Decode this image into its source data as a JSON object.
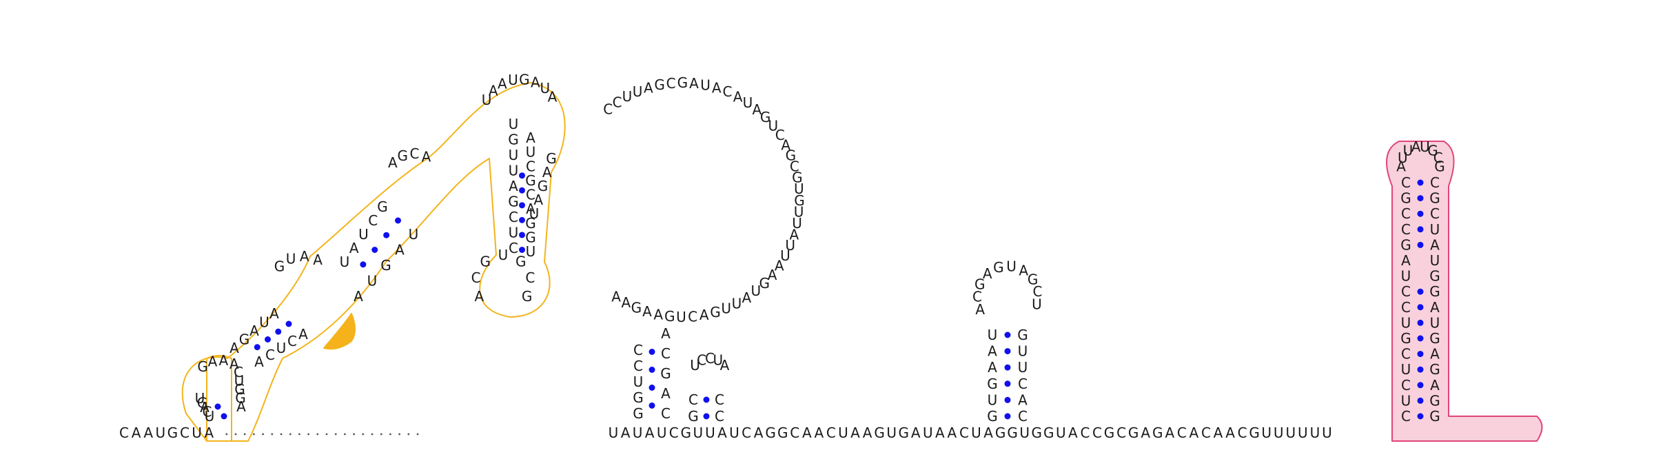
{
  "diagram": {
    "type": "rna-secondary-structure",
    "colors": {
      "background": "#ffffff",
      "nucleotide": "#1a1a1a",
      "base_pair": "#1010ee",
      "backbone": "#555555",
      "highlight_orange_stroke": "#f3b41b",
      "highlight_orange_fill": "#f5b21a",
      "highlight_pink_stroke": "#e0457b",
      "highlight_pink_fill": "#f8d1dd"
    },
    "strand": {
      "five_prime": [
        "C",
        "A",
        "A",
        "U",
        "G",
        "C",
        "U",
        "A"
      ],
      "gap_dots": 22,
      "after_gap": [
        "U",
        "A",
        "U",
        "A",
        "U",
        "C",
        "G",
        "U",
        "U",
        "A",
        "U",
        "C",
        "A",
        "G",
        "G",
        "C",
        "A",
        "A",
        "C",
        "U",
        "A",
        "A",
        "G",
        "U",
        "G",
        "A",
        "U",
        "A",
        "A",
        "C",
        "U",
        "A",
        "G",
        "G",
        "U",
        "G",
        "G",
        "U",
        "A",
        "C",
        "C",
        "G",
        "C",
        "G",
        "A",
        "G",
        "A",
        "C",
        "A",
        "C",
        "A",
        "A",
        "C",
        "G",
        "U",
        "U",
        "U",
        "U",
        "U",
        "U"
      ]
    },
    "left_domain": {
      "stem1_left": [
        "U",
        "G",
        "A",
        "C",
        "U"
      ],
      "stem1_right": [
        "A",
        "G",
        "G",
        "U",
        "C"
      ],
      "loop1": [
        "G",
        "A",
        "A",
        "A"
      ],
      "stem2_left": [
        "A",
        "G",
        "A",
        "U",
        "A"
      ],
      "stem2_right": [
        "A",
        "C",
        "U",
        "C",
        "A"
      ],
      "loop2": [
        "G",
        "U",
        "A",
        "A"
      ],
      "stem3_left": [
        "U",
        "A",
        "U",
        "C",
        "G"
      ],
      "stem3_right": [
        "A",
        "U",
        "G",
        "A",
        "U"
      ],
      "loop3": [
        "A",
        "G",
        "C",
        "A"
      ],
      "helix_top": [
        "U",
        "A",
        "A",
        "U",
        "G",
        "A",
        "U",
        "A"
      ],
      "helix_right": [
        "G",
        "A",
        "G",
        "A",
        "U"
      ],
      "inner_hairpin_left": [
        "U",
        "G",
        "U",
        "U",
        "A",
        "G",
        "C",
        "U",
        "C"
      ],
      "inner_hairpin_right": [
        "A",
        "U",
        "C",
        "G",
        "C",
        "A",
        "G",
        "G",
        "U"
      ],
      "inner_loop": [
        "A",
        "C",
        "G",
        "U",
        "G",
        "C",
        "G"
      ]
    },
    "big_loop": [
      "C",
      "C",
      "U",
      "U",
      "A",
      "G",
      "C",
      "G",
      "A",
      "U",
      "A",
      "C",
      "A",
      "U",
      "A",
      "G",
      "U",
      "C",
      "A",
      "G",
      "C",
      "G",
      "U",
      "G",
      "U",
      "U",
      "A",
      "U",
      "U",
      "A",
      "A",
      "G",
      "U",
      "A",
      "U",
      "U",
      "G",
      "A",
      "C",
      "U",
      "G",
      "A",
      "A",
      "G",
      "A",
      "A"
    ],
    "hairpin_b": {
      "stem_left": [
        "C",
        "C",
        "U",
        "G",
        "G"
      ],
      "stem_right": [
        "A",
        "C",
        "G",
        "A",
        "C"
      ],
      "loop": [
        "U",
        "C",
        "C",
        "U",
        "A"
      ],
      "small_stem_left": [
        "C",
        "G"
      ],
      "small_stem_right": [
        "C",
        "C"
      ]
    },
    "hairpin_c": {
      "stem_left": [
        "U",
        "A",
        "A",
        "G",
        "U",
        "G"
      ],
      "stem_right": [
        "G",
        "U",
        "U",
        "C",
        "A",
        "C"
      ],
      "loop": [
        "A",
        "C",
        "G",
        "A",
        "G",
        "U",
        "A",
        "G",
        "C",
        "U"
      ]
    },
    "hairpin_d": {
      "stem_left": [
        "C",
        "G",
        "C",
        "C",
        "G",
        "A",
        "U",
        "C",
        "C",
        "U",
        "G",
        "C",
        "U",
        "C",
        "U",
        "C"
      ],
      "stem_right": [
        "C",
        "G",
        "C",
        "U",
        "A",
        "U",
        "G",
        "G",
        "A",
        "U",
        "G",
        "A",
        "G",
        "A",
        "G",
        "G"
      ],
      "loop": [
        "A",
        "U",
        "U",
        "A",
        "U",
        "G",
        "C",
        "G"
      ]
    }
  }
}
